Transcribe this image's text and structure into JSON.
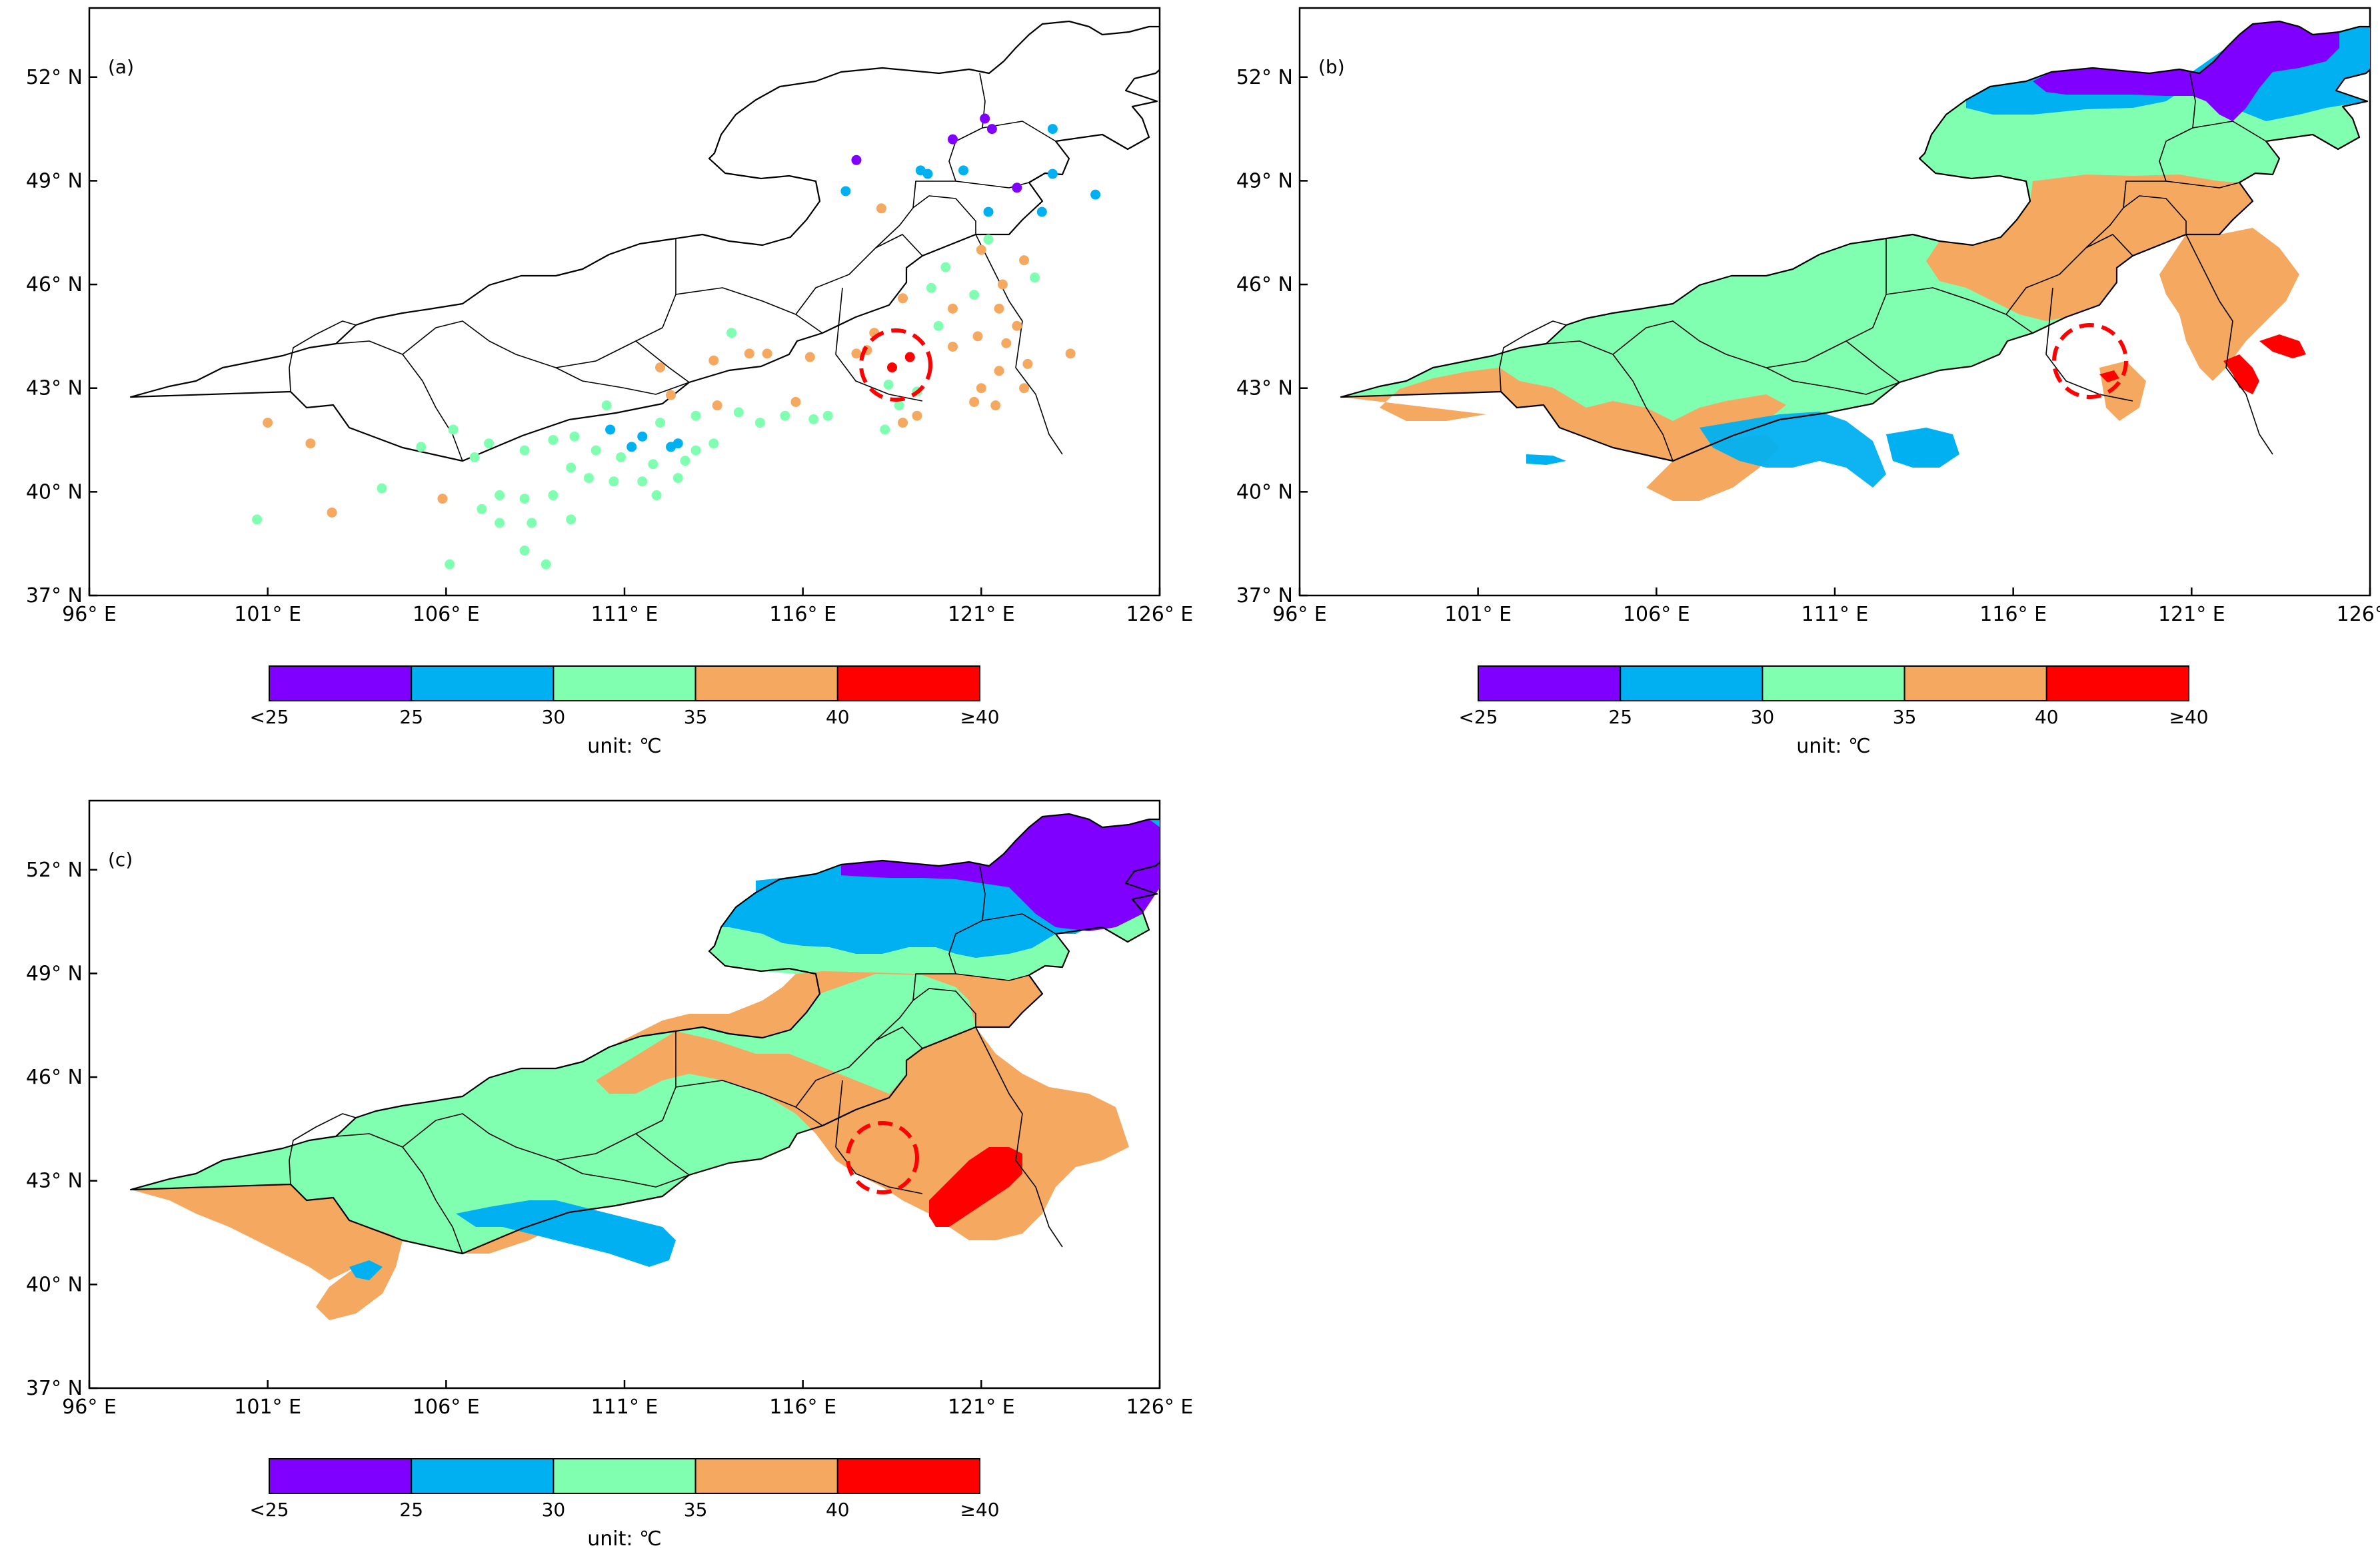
{
  "colors": {
    "lt25": "#8000ff",
    "c25_30": "#00b0f0",
    "c30_35": "#80ffb0",
    "c35_40": "#f5a860",
    "ge40": "#ff0000",
    "circle": "#ff0000"
  },
  "panels": [
    {
      "id": "a",
      "label": "(a)",
      "type": "station-dots"
    },
    {
      "id": "b",
      "label": "(b)",
      "type": "gridded-field"
    },
    {
      "id": "c",
      "label": "(c)",
      "type": "gridded-field"
    }
  ],
  "axes": {
    "x_ticks": [
      "96° E",
      "101° E",
      "106° E",
      "111° E",
      "116° E",
      "121° E",
      "126° E"
    ],
    "y_ticks": [
      "37° N",
      "40° N",
      "43° N",
      "46° N",
      "49° N",
      "52° N"
    ],
    "x_range_deg": [
      96,
      126
    ],
    "y_range_deg": [
      37,
      54
    ]
  },
  "colorbar": {
    "tick_labels": [
      "<25",
      "25",
      "30",
      "35",
      "40",
      "≥40"
    ],
    "unit_label": "unit: ℃",
    "classes": [
      "<25",
      "25-30",
      "30-35",
      "35-40",
      "≥40"
    ]
  },
  "stations": [
    {
      "lon": 120.2,
      "lat": 50.2,
      "c": "lt25"
    },
    {
      "lon": 121.1,
      "lat": 50.8,
      "c": "lt25"
    },
    {
      "lon": 121.3,
      "lat": 50.5,
      "c": "lt25"
    },
    {
      "lon": 117.5,
      "lat": 49.6,
      "c": "lt25"
    },
    {
      "lon": 122.0,
      "lat": 48.8,
      "c": "lt25"
    },
    {
      "lon": 119.3,
      "lat": 49.3,
      "c": "c25_30"
    },
    {
      "lon": 119.5,
      "lat": 49.2,
      "c": "c25_30"
    },
    {
      "lon": 120.5,
      "lat": 49.3,
      "c": "c25_30"
    },
    {
      "lon": 117.2,
      "lat": 48.7,
      "c": "c25_30"
    },
    {
      "lon": 123.0,
      "lat": 50.5,
      "c": "c25_30"
    },
    {
      "lon": 123.0,
      "lat": 49.2,
      "c": "c25_30"
    },
    {
      "lon": 121.2,
      "lat": 48.1,
      "c": "c25_30"
    },
    {
      "lon": 122.7,
      "lat": 48.1,
      "c": "c25_30"
    },
    {
      "lon": 124.2,
      "lat": 48.6,
      "c": "c25_30"
    },
    {
      "lon": 118.2,
      "lat": 48.2,
      "c": "c35_40"
    },
    {
      "lon": 121.0,
      "lat": 47.0,
      "c": "c35_40"
    },
    {
      "lon": 122.2,
      "lat": 46.7,
      "c": "c35_40"
    },
    {
      "lon": 121.6,
      "lat": 46.0,
      "c": "c35_40"
    },
    {
      "lon": 118.8,
      "lat": 45.6,
      "c": "c35_40"
    },
    {
      "lon": 120.2,
      "lat": 45.3,
      "c": "c35_40"
    },
    {
      "lon": 121.5,
      "lat": 45.3,
      "c": "c35_40"
    },
    {
      "lon": 122.0,
      "lat": 44.8,
      "c": "c35_40"
    },
    {
      "lon": 120.9,
      "lat": 44.5,
      "c": "c35_40"
    },
    {
      "lon": 118.0,
      "lat": 44.6,
      "c": "c35_40"
    },
    {
      "lon": 117.5,
      "lat": 44.0,
      "c": "c35_40"
    },
    {
      "lon": 120.2,
      "lat": 44.2,
      "c": "c35_40"
    },
    {
      "lon": 121.7,
      "lat": 44.3,
      "c": "c35_40"
    },
    {
      "lon": 122.3,
      "lat": 43.7,
      "c": "c35_40"
    },
    {
      "lon": 121.5,
      "lat": 43.5,
      "c": "c35_40"
    },
    {
      "lon": 122.2,
      "lat": 43.0,
      "c": "c35_40"
    },
    {
      "lon": 121.0,
      "lat": 43.0,
      "c": "c35_40"
    },
    {
      "lon": 120.8,
      "lat": 42.6,
      "c": "c35_40"
    },
    {
      "lon": 121.4,
      "lat": 42.5,
      "c": "c35_40"
    },
    {
      "lon": 119.2,
      "lat": 42.2,
      "c": "c35_40"
    },
    {
      "lon": 118.8,
      "lat": 42.0,
      "c": "c35_40"
    },
    {
      "lon": 123.5,
      "lat": 44.0,
      "c": "c35_40"
    },
    {
      "lon": 114.5,
      "lat": 44.0,
      "c": "c35_40"
    },
    {
      "lon": 113.5,
      "lat": 43.8,
      "c": "c35_40"
    },
    {
      "lon": 115.0,
      "lat": 44.0,
      "c": "c35_40"
    },
    {
      "lon": 116.2,
      "lat": 43.9,
      "c": "c35_40"
    },
    {
      "lon": 112.0,
      "lat": 43.6,
      "c": "c35_40"
    },
    {
      "lon": 112.3,
      "lat": 42.8,
      "c": "c35_40"
    },
    {
      "lon": 113.6,
      "lat": 42.5,
      "c": "c35_40"
    },
    {
      "lon": 115.8,
      "lat": 42.6,
      "c": "c35_40"
    },
    {
      "lon": 101.0,
      "lat": 42.0,
      "c": "c35_40"
    },
    {
      "lon": 102.2,
      "lat": 41.4,
      "c": "c35_40"
    },
    {
      "lon": 102.8,
      "lat": 39.4,
      "c": "c35_40"
    },
    {
      "lon": 105.9,
      "lat": 39.8,
      "c": "c35_40"
    },
    {
      "lon": 117.8,
      "lat": 44.1,
      "c": "c35_40"
    },
    {
      "lon": 118.5,
      "lat": 43.6,
      "c": "ge40"
    },
    {
      "lon": 119.0,
      "lat": 43.9,
      "c": "ge40"
    },
    {
      "lon": 120.0,
      "lat": 46.5,
      "c": "c30_35"
    },
    {
      "lon": 119.6,
      "lat": 45.9,
      "c": "c30_35"
    },
    {
      "lon": 121.2,
      "lat": 47.3,
      "c": "c30_35"
    },
    {
      "lon": 122.5,
      "lat": 46.2,
      "c": "c30_35"
    },
    {
      "lon": 120.8,
      "lat": 45.7,
      "c": "c30_35"
    },
    {
      "lon": 119.8,
      "lat": 44.8,
      "c": "c30_35"
    },
    {
      "lon": 114.0,
      "lat": 44.6,
      "c": "c30_35"
    },
    {
      "lon": 118.4,
      "lat": 43.1,
      "c": "c30_35"
    },
    {
      "lon": 119.2,
      "lat": 42.9,
      "c": "c30_35"
    },
    {
      "lon": 118.7,
      "lat": 42.5,
      "c": "c30_35"
    },
    {
      "lon": 118.3,
      "lat": 41.8,
      "c": "c30_35"
    },
    {
      "lon": 116.7,
      "lat": 42.2,
      "c": "c30_35"
    },
    {
      "lon": 116.3,
      "lat": 42.1,
      "c": "c30_35"
    },
    {
      "lon": 115.5,
      "lat": 42.2,
      "c": "c30_35"
    },
    {
      "lon": 114.8,
      "lat": 42.0,
      "c": "c30_35"
    },
    {
      "lon": 114.2,
      "lat": 42.3,
      "c": "c30_35"
    },
    {
      "lon": 113.0,
      "lat": 42.2,
      "c": "c30_35"
    },
    {
      "lon": 112.0,
      "lat": 42.0,
      "c": "c30_35"
    },
    {
      "lon": 113.5,
      "lat": 41.4,
      "c": "c30_35"
    },
    {
      "lon": 113.0,
      "lat": 41.2,
      "c": "c30_35"
    },
    {
      "lon": 112.7,
      "lat": 40.9,
      "c": "c30_35"
    },
    {
      "lon": 111.8,
      "lat": 40.8,
      "c": "c30_35"
    },
    {
      "lon": 111.5,
      "lat": 40.3,
      "c": "c30_35"
    },
    {
      "lon": 111.9,
      "lat": 39.9,
      "c": "c30_35"
    },
    {
      "lon": 110.5,
      "lat": 42.5,
      "c": "c30_35"
    },
    {
      "lon": 110.2,
      "lat": 41.2,
      "c": "c30_35"
    },
    {
      "lon": 109.6,
      "lat": 41.6,
      "c": "c30_35"
    },
    {
      "lon": 109.0,
      "lat": 41.5,
      "c": "c30_35"
    },
    {
      "lon": 108.2,
      "lat": 41.2,
      "c": "c30_35"
    },
    {
      "lon": 107.2,
      "lat": 41.4,
      "c": "c30_35"
    },
    {
      "lon": 106.8,
      "lat": 41.0,
      "c": "c30_35"
    },
    {
      "lon": 109.5,
      "lat": 40.7,
      "c": "c30_35"
    },
    {
      "lon": 110.0,
      "lat": 40.4,
      "c": "c30_35"
    },
    {
      "lon": 110.7,
      "lat": 40.3,
      "c": "c30_35"
    },
    {
      "lon": 109.0,
      "lat": 39.9,
      "c": "c30_35"
    },
    {
      "lon": 108.2,
      "lat": 39.8,
      "c": "c30_35"
    },
    {
      "lon": 107.5,
      "lat": 39.9,
      "c": "c30_35"
    },
    {
      "lon": 107.0,
      "lat": 39.5,
      "c": "c30_35"
    },
    {
      "lon": 107.5,
      "lat": 39.1,
      "c": "c30_35"
    },
    {
      "lon": 108.4,
      "lat": 39.1,
      "c": "c30_35"
    },
    {
      "lon": 109.5,
      "lat": 39.2,
      "c": "c30_35"
    },
    {
      "lon": 108.2,
      "lat": 38.3,
      "c": "c30_35"
    },
    {
      "lon": 108.8,
      "lat": 37.9,
      "c": "c30_35"
    },
    {
      "lon": 106.1,
      "lat": 37.9,
      "c": "c30_35"
    },
    {
      "lon": 104.2,
      "lat": 40.1,
      "c": "c30_35"
    },
    {
      "lon": 100.7,
      "lat": 39.2,
      "c": "c30_35"
    },
    {
      "lon": 105.3,
      "lat": 41.3,
      "c": "c30_35"
    },
    {
      "lon": 106.2,
      "lat": 41.8,
      "c": "c30_35"
    },
    {
      "lon": 112.5,
      "lat": 40.4,
      "c": "c30_35"
    },
    {
      "lon": 110.9,
      "lat": 41.0,
      "c": "c30_35"
    },
    {
      "lon": 110.6,
      "lat": 41.8,
      "c": "c25_30"
    },
    {
      "lon": 111.5,
      "lat": 41.6,
      "c": "c25_30"
    },
    {
      "lon": 111.2,
      "lat": 41.3,
      "c": "c25_30"
    },
    {
      "lon": 112.5,
      "lat": 41.4,
      "c": "c25_30"
    },
    {
      "lon": 112.3,
      "lat": 41.3,
      "c": "c25_30"
    }
  ]
}
